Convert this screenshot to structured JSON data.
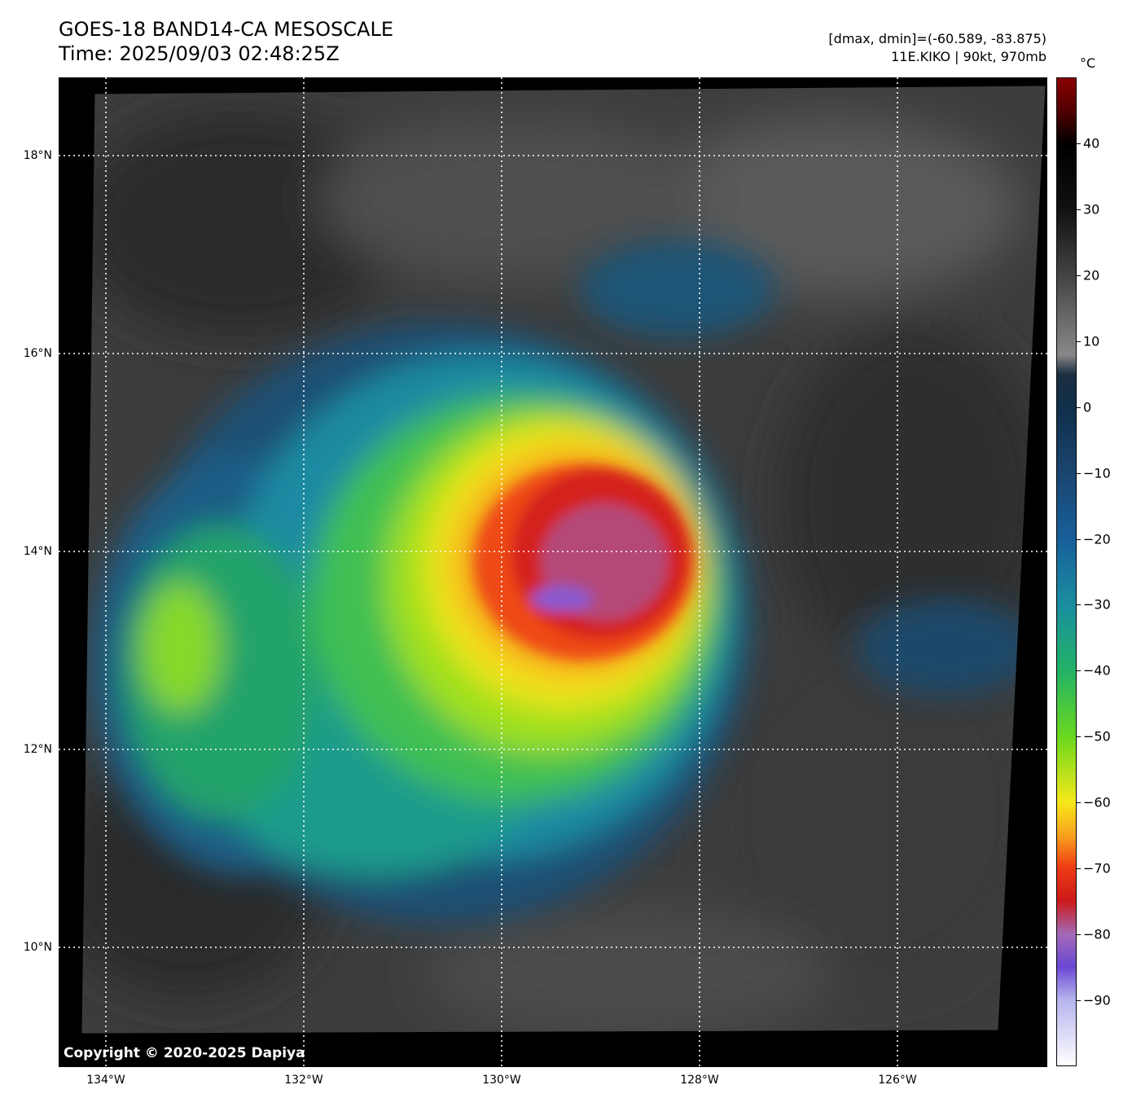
{
  "header": {
    "title": "GOES-18 BAND14-CA MESOSCALE",
    "time": "Time: 2025/09/03 02:48:25Z",
    "dminmax": "[dmax, dmin]=(-60.589, -83.875)",
    "storm": "11E.KIKO | 90kt, 970mb"
  },
  "map": {
    "copyright": "Copyright © 2020-2025 Dapiya",
    "lat_labels": [
      "18°N",
      "16°N",
      "14°N",
      "12°N",
      "10°N"
    ],
    "lon_labels": [
      "134°W",
      "132°W",
      "130°W",
      "128°W",
      "126°W"
    ],
    "lat_values": [
      18,
      16,
      14,
      12,
      10
    ],
    "lon_values": [
      -134,
      -132,
      -130,
      -128,
      -126
    ]
  },
  "colorbar": {
    "unit": "°C",
    "tick_labels": [
      "40",
      "30",
      "20",
      "10",
      "0",
      "−10",
      "−20",
      "−30",
      "−40",
      "−50",
      "−60",
      "−70",
      "−80",
      "−90"
    ],
    "tick_values": [
      40,
      30,
      20,
      10,
      0,
      -10,
      -20,
      -30,
      -40,
      -50,
      -60,
      -70,
      -80,
      -90
    ],
    "range": [
      -100,
      50
    ],
    "colors": {
      "-100": "#ffffff",
      "-90": "#b6b4ee",
      "-85": "#6a48d4",
      "-80": "#a46ab6",
      "-75": "#cb1a1a",
      "-70": "#ee3a14",
      "-65": "#f8a21c",
      "-60": "#f6e81a",
      "-50": "#6ad81e",
      "-40": "#22b266",
      "-30": "#1a8ea0",
      "-20": "#175f9a",
      "-10": "#1b4570",
      "0": "#0f2f4a",
      "5": "#1c2e40",
      "8": "#888888",
      "20": "#444444",
      "30": "#111111",
      "40": "#000000",
      "45": "#500000",
      "50": "#8b0000"
    }
  }
}
